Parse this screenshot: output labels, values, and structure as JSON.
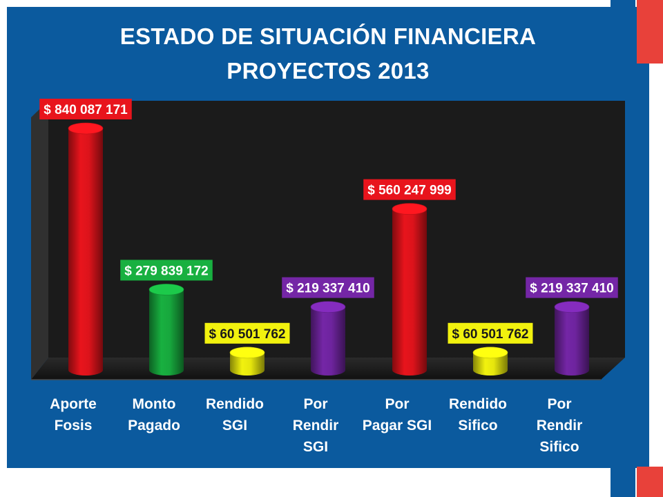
{
  "title": "ESTADO DE SITUACIÓN FINANCIERA",
  "subtitle": "PROYECTOS 2013",
  "colors": {
    "background": "#0b5a9e",
    "red": "#e8141c",
    "green": "#18b040",
    "yellow": "#f2f20e",
    "purple": "#7426a6",
    "accent_red": "#e8413a"
  },
  "chart_data": {
    "type": "bar",
    "title": "ESTADO DE SITUACIÓN FINANCIERA",
    "subtitle": "PROYECTOS 2013",
    "categories": [
      "Aporte Fosis",
      "Monto Pagado",
      "Rendido SGI",
      "Por Rendir SGI",
      "Por Pagar SGI",
      "Rendido Sifico",
      "Por Rendir Sifico"
    ],
    "category_lines": [
      [
        "Aporte",
        "Fosis"
      ],
      [
        "Monto",
        "Pagado"
      ],
      [
        "Rendido",
        "SGI"
      ],
      [
        "Por",
        "Rendir",
        "SGI"
      ],
      [
        "Por",
        "Pagar SGI"
      ],
      [
        "Rendido",
        "Sifico"
      ],
      [
        "Por",
        "Rendir",
        "Sifico"
      ]
    ],
    "values": [
      840087171,
      279839172,
      60501762,
      219337410,
      560247999,
      60501762,
      219337410
    ],
    "data_labels": [
      "$ 840 087 171",
      "$ 279 839 172",
      "$ 60 501 762",
      "$ 219 337 410",
      "$ 560 247 999",
      "$ 60 501 762",
      "$ 219 337 410"
    ],
    "bar_colors": [
      "#e8141c",
      "#18b040",
      "#f2f20e",
      "#7426a6",
      "#e8141c",
      "#f2f20e",
      "#7426a6"
    ],
    "ylim": [
      0,
      840087171
    ],
    "xlabel": "",
    "ylabel": "",
    "grid": false,
    "legend": "none",
    "style": "3d-cylinder"
  }
}
